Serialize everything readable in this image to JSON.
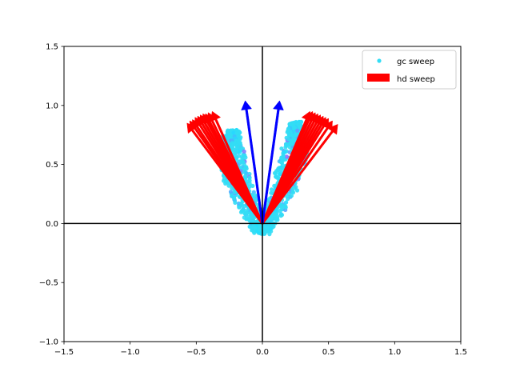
{
  "chart_data": {
    "type": "scatter",
    "xlim": [
      -1.5,
      1.5
    ],
    "ylim": [
      -1.0,
      1.5
    ],
    "x_ticks": [
      -1.5,
      -1.0,
      -0.5,
      0.0,
      0.5,
      1.0,
      1.5
    ],
    "x_tick_labels": [
      "−1.5",
      "−1.0",
      "−0.5",
      "0.0",
      "0.5",
      "1.0",
      "1.5"
    ],
    "y_ticks": [
      -1.0,
      -0.5,
      0.0,
      0.5,
      1.0,
      1.5
    ],
    "y_tick_labels": [
      "−1.0",
      "−0.5",
      "0.0",
      "0.5",
      "1.0",
      "1.5"
    ],
    "grid": false,
    "legend_position": "upper right",
    "axis_lines": {
      "x": 0.0,
      "y": 0.0,
      "color": "#000000"
    },
    "series": [
      {
        "name": "gc sweep",
        "kind": "scatter",
        "colormap": "cool",
        "color": "#33ddf5",
        "lobes": [
          {
            "side": "left",
            "start": [
              -0.02,
              -0.05
            ],
            "apex": [
              -0.45,
              0.62
            ],
            "tip": [
              -0.22,
              0.75
            ]
          },
          {
            "side": "right",
            "start": [
              0.02,
              -0.05
            ],
            "apex": [
              0.45,
              0.62
            ],
            "tip": [
              0.25,
              0.82
            ]
          }
        ]
      },
      {
        "name": "hd sweep",
        "kind": "arrows",
        "color": "#ff0000",
        "origin": [
          0.0,
          0.0
        ],
        "vectors": [
          [
            -0.57,
            0.85
          ],
          [
            -0.55,
            0.87
          ],
          [
            -0.53,
            0.88
          ],
          [
            -0.51,
            0.9
          ],
          [
            -0.49,
            0.91
          ],
          [
            -0.47,
            0.92
          ],
          [
            -0.45,
            0.93
          ],
          [
            -0.43,
            0.93
          ],
          [
            -0.41,
            0.94
          ],
          [
            -0.38,
            0.95
          ],
          [
            0.36,
            0.95
          ],
          [
            0.38,
            0.95
          ],
          [
            0.4,
            0.94
          ],
          [
            0.42,
            0.93
          ],
          [
            0.44,
            0.92
          ],
          [
            0.46,
            0.91
          ],
          [
            0.48,
            0.9
          ],
          [
            0.5,
            0.89
          ],
          [
            0.53,
            0.87
          ],
          [
            0.57,
            0.84
          ]
        ]
      },
      {
        "kind": "arrows",
        "color": "#0000ff",
        "origin": [
          0.0,
          0.0
        ],
        "vectors": [
          [
            -0.13,
            1.04
          ],
          [
            0.13,
            1.04
          ]
        ]
      }
    ]
  }
}
